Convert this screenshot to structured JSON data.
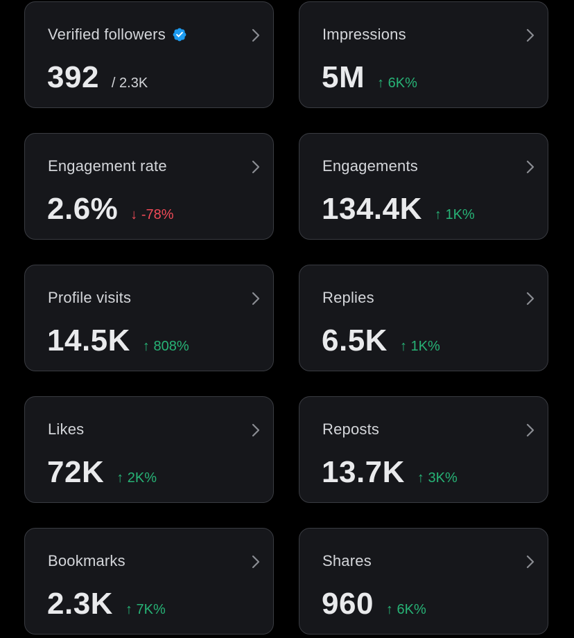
{
  "colors": {
    "positive": "#27b376",
    "negative": "#f04a57",
    "verified": "#1d9bf0"
  },
  "cards": {
    "verified_followers": {
      "label": "Verified followers",
      "value": "392",
      "sub": "/ 2.3K",
      "icon": "verified-badge-icon"
    },
    "impressions": {
      "label": "Impressions",
      "value": "5M",
      "change": "↑ 6K%"
    },
    "engagement_rate": {
      "label": "Engagement rate",
      "value": "2.6%",
      "change": "↓ -78%"
    },
    "engagements": {
      "label": "Engagements",
      "value": "134.4K",
      "change": "↑ 1K%"
    },
    "profile_visits": {
      "label": "Profile visits",
      "value": "14.5K",
      "change": "↑ 808%"
    },
    "replies": {
      "label": "Replies",
      "value": "6.5K",
      "change": "↑ 1K%"
    },
    "likes": {
      "label": "Likes",
      "value": "72K",
      "change": "↑ 2K%"
    },
    "reposts": {
      "label": "Reposts",
      "value": "13.7K",
      "change": "↑ 3K%"
    },
    "bookmarks": {
      "label": "Bookmarks",
      "value": "2.3K",
      "change": "↑ 7K%"
    },
    "shares": {
      "label": "Shares",
      "value": "960",
      "change": "↑ 6K%"
    }
  }
}
